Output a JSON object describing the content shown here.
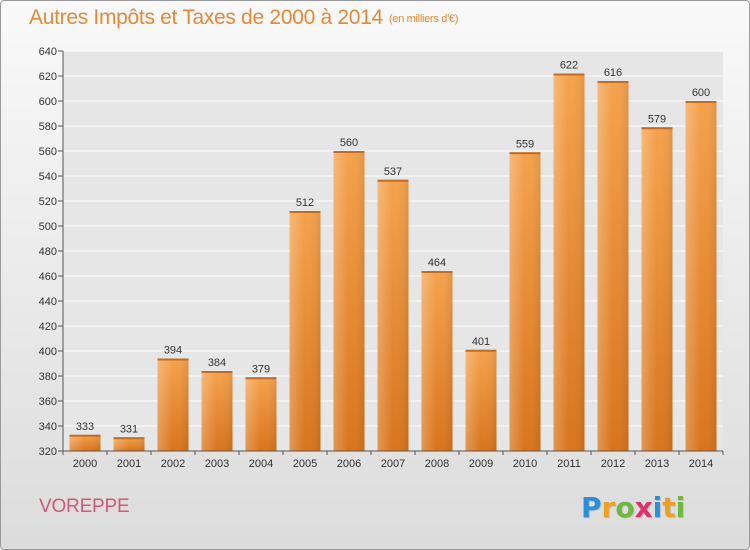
{
  "header": {
    "title": "Autres Impôts et Taxes de 2000 à 2014",
    "unit": "(en milliers d'€)"
  },
  "commune": "VOREPPE",
  "logo": {
    "letters": [
      "P",
      "r",
      "o",
      "x",
      "i",
      "t",
      "i"
    ],
    "colors": [
      "#2a8fd6",
      "#f0a020",
      "#6fb840",
      "#e0306a",
      "#2a8fd6",
      "#f0a020",
      "#6fb840"
    ]
  },
  "colors": {
    "bar": "#f09a40",
    "bar_dark": "#d8741c",
    "title": "#e08a3a",
    "commune": "#d05a7a",
    "grid": "#ffffff"
  },
  "chart_data": {
    "type": "bar",
    "categories": [
      "2000",
      "2001",
      "2002",
      "2003",
      "2004",
      "2005",
      "2006",
      "2007",
      "2008",
      "2009",
      "2010",
      "2011",
      "2012",
      "2013",
      "2014"
    ],
    "values": [
      333,
      331,
      394,
      384,
      379,
      512,
      560,
      537,
      464,
      401,
      559,
      622,
      616,
      579,
      600
    ],
    "yticks": [
      320,
      340,
      360,
      380,
      400,
      420,
      440,
      460,
      480,
      500,
      520,
      540,
      560,
      580,
      600,
      620,
      640
    ],
    "ylim": [
      320,
      640
    ],
    "grid": true,
    "title": "Autres Impôts et Taxes de 2000 à 2014",
    "xlabel": "",
    "ylabel": ""
  }
}
